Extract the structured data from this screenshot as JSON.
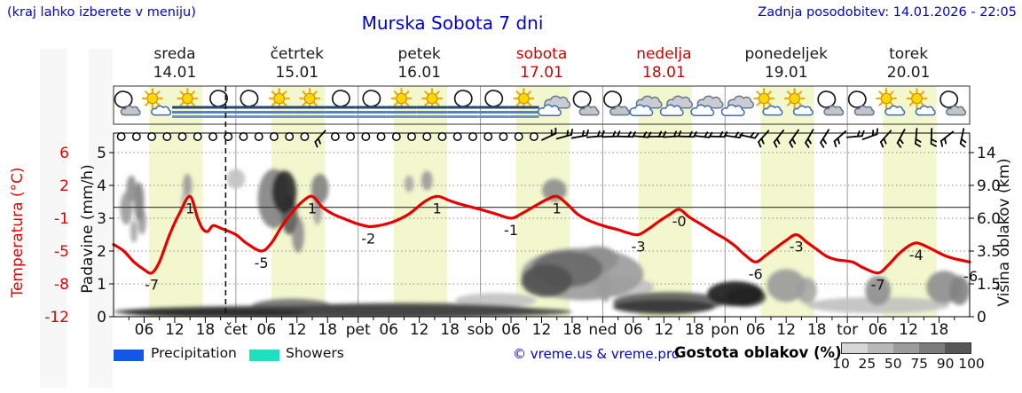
{
  "header": {
    "hint": "(kraj lahko izberete v meniju)",
    "title": "Murska Sobota 7 dni",
    "updated": "Zadnja posodobitev: 14.01.2026 - 22:05"
  },
  "days": [
    {
      "name": "sreda",
      "date": "14.01",
      "weekend": false
    },
    {
      "name": "četrtek",
      "date": "15.01",
      "weekend": false
    },
    {
      "name": "petek",
      "date": "16.01",
      "weekend": false
    },
    {
      "name": "sobota",
      "date": "17.01",
      "weekend": true
    },
    {
      "name": "nedelja",
      "date": "18.01",
      "weekend": true
    },
    {
      "name": "ponedeljek",
      "date": "19.01",
      "weekend": false
    },
    {
      "name": "torek",
      "date": "20.01",
      "weekend": false
    }
  ],
  "axes": {
    "temp_label": "Temperatura (°C)",
    "temp_ticks": [
      "6",
      "2",
      "-1",
      "-5",
      "-8",
      "-12"
    ],
    "precip_label": "Padavine (mm/h)",
    "precip_ticks": [
      "5",
      "4",
      "3",
      "2",
      "1",
      "0"
    ],
    "cloud_label": "Višina oblakov (km)",
    "cloud_ticks": [
      "14",
      "9.0",
      "6.0",
      "3.5",
      "1.5",
      "0"
    ]
  },
  "legend": {
    "precipitation": "Precipitation",
    "showers": "Showers",
    "copyright": "© vreme.us & vreme.pro",
    "cloud_density": "Gostota oblakov (%)",
    "density_ticks": [
      "10",
      "25",
      "50",
      "75",
      "90",
      "100"
    ],
    "precipitation_color": "#1158e8",
    "showers_color": "#1fdfc0",
    "density_colors": [
      "#d6d6d6",
      "#b8b8b8",
      "#9c9c9c",
      "#7d7d7d",
      "#575757"
    ]
  },
  "chart_data": {
    "type": "line",
    "title": "Murska Sobota 7 dni",
    "x_unit": "hours from 14.01 00:00",
    "x_range": [
      0,
      168
    ],
    "temp_axis_c": [
      -12,
      -8,
      -5,
      -1,
      2,
      6
    ],
    "precip_axis": [
      0,
      1,
      2,
      3,
      4,
      5
    ],
    "cloud_height_km": [
      "0",
      "1.5",
      "3.5",
      "6.0",
      "9.0",
      "14"
    ],
    "freezing_line_c": 0,
    "now_h": 22,
    "daylight_color": "#f3f7cd",
    "curve_color": "#e60000",
    "daylight": [
      [
        7,
        17.5
      ],
      [
        31,
        41.5
      ],
      [
        55,
        65.5
      ],
      [
        79,
        89.5
      ],
      [
        103,
        113.5
      ],
      [
        127,
        137.5
      ],
      [
        151,
        161.5
      ]
    ],
    "x_tick_labels": [
      {
        "h": 6,
        "t": "06"
      },
      {
        "h": 12,
        "t": "12"
      },
      {
        "h": 18,
        "t": "18"
      },
      {
        "h": 24,
        "t": "čet"
      },
      {
        "h": 30,
        "t": "06"
      },
      {
        "h": 36,
        "t": "12"
      },
      {
        "h": 42,
        "t": "18"
      },
      {
        "h": 48,
        "t": "pet"
      },
      {
        "h": 54,
        "t": "06"
      },
      {
        "h": 60,
        "t": "12"
      },
      {
        "h": 66,
        "t": "18"
      },
      {
        "h": 72,
        "t": "sob"
      },
      {
        "h": 78,
        "t": "06"
      },
      {
        "h": 84,
        "t": "12"
      },
      {
        "h": 90,
        "t": "18"
      },
      {
        "h": 96,
        "t": "ned"
      },
      {
        "h": 102,
        "t": "06"
      },
      {
        "h": 108,
        "t": "12"
      },
      {
        "h": 114,
        "t": "18"
      },
      {
        "h": 120,
        "t": "pon"
      },
      {
        "h": 126,
        "t": "06"
      },
      {
        "h": 132,
        "t": "12"
      },
      {
        "h": 138,
        "t": "18"
      },
      {
        "h": 144,
        "t": "tor"
      },
      {
        "h": 150,
        "t": "06"
      },
      {
        "h": 156,
        "t": "12"
      },
      {
        "h": 162,
        "t": "18"
      }
    ],
    "temperature_series": [
      [
        0,
        -4.2
      ],
      [
        2,
        -5
      ],
      [
        4,
        -6
      ],
      [
        6,
        -6.7
      ],
      [
        7.5,
        -7
      ],
      [
        9,
        -6
      ],
      [
        11,
        -3
      ],
      [
        13,
        -0.5
      ],
      [
        15,
        1
      ],
      [
        16.5,
        -1
      ],
      [
        17.5,
        -2.3
      ],
      [
        18.5,
        -2.6
      ],
      [
        19.5,
        -1.9
      ],
      [
        21,
        -2.2
      ],
      [
        24,
        -3
      ],
      [
        26,
        -4
      ],
      [
        29,
        -5
      ],
      [
        31,
        -4
      ],
      [
        33,
        -2
      ],
      [
        35,
        -0.5
      ],
      [
        37,
        0.5
      ],
      [
        39,
        1
      ],
      [
        41,
        0
      ],
      [
        43,
        -0.6
      ],
      [
        45,
        -1
      ],
      [
        47.5,
        -1.6
      ],
      [
        50,
        -2
      ],
      [
        52,
        -1.9
      ],
      [
        55,
        -1.4
      ],
      [
        58,
        -0.6
      ],
      [
        61,
        0.5
      ],
      [
        63.5,
        1
      ],
      [
        66,
        0.6
      ],
      [
        68,
        0.3
      ],
      [
        72,
        -0.2
      ],
      [
        75,
        -0.6
      ],
      [
        78,
        -1
      ],
      [
        80,
        -0.6
      ],
      [
        83,
        0.2
      ],
      [
        85,
        0.7
      ],
      [
        87,
        1
      ],
      [
        89,
        0.3
      ],
      [
        91,
        -0.6
      ],
      [
        93,
        -1.2
      ],
      [
        96,
        -1.9
      ],
      [
        99,
        -2.4
      ],
      [
        101,
        -2.8
      ],
      [
        103,
        -3
      ],
      [
        105,
        -2.3
      ],
      [
        107,
        -1.4
      ],
      [
        109,
        -0.7
      ],
      [
        111,
        -0.2
      ],
      [
        113,
        -0.9
      ],
      [
        116,
        -2
      ],
      [
        118,
        -2.8
      ],
      [
        120,
        -3.5
      ],
      [
        122,
        -4.4
      ],
      [
        124,
        -5.4
      ],
      [
        126,
        -6
      ],
      [
        128,
        -5.4
      ],
      [
        130,
        -4.6
      ],
      [
        132,
        -3.7
      ],
      [
        134,
        -3
      ],
      [
        136,
        -3.9
      ],
      [
        138,
        -4.8
      ],
      [
        140,
        -5.5
      ],
      [
        142,
        -5.8
      ],
      [
        145,
        -6
      ],
      [
        147,
        -6.5
      ],
      [
        150,
        -7
      ],
      [
        152,
        -6.3
      ],
      [
        154,
        -5.3
      ],
      [
        156,
        -4.4
      ],
      [
        157.5,
        -4
      ],
      [
        159,
        -4.3
      ],
      [
        161,
        -4.9
      ],
      [
        163,
        -5.4
      ],
      [
        165,
        -5.7
      ],
      [
        168,
        -6
      ]
    ],
    "temp_labels": [
      {
        "h": 7.5,
        "c": -7,
        "t": "-7"
      },
      {
        "h": 15,
        "c": 1,
        "t": "1"
      },
      {
        "h": 29,
        "c": -5,
        "t": "-5"
      },
      {
        "h": 39,
        "c": 1,
        "t": "1"
      },
      {
        "h": 50,
        "c": -2,
        "t": "-2"
      },
      {
        "h": 63.5,
        "c": 1,
        "t": "1"
      },
      {
        "h": 78,
        "c": -1,
        "t": "-1"
      },
      {
        "h": 87,
        "c": 1,
        "t": "1"
      },
      {
        "h": 103,
        "c": -3,
        "t": "-3"
      },
      {
        "h": 111,
        "c": -0.2,
        "t": "-0"
      },
      {
        "h": 126,
        "c": -6,
        "t": "-6"
      },
      {
        "h": 134,
        "c": -3,
        "t": "-3"
      },
      {
        "h": 150,
        "c": -7,
        "t": "-7"
      },
      {
        "h": 157.5,
        "c": -4,
        "t": "-4"
      },
      {
        "h": 168.2,
        "c": -6.2,
        "t": "-6"
      }
    ],
    "weather_icons_6h": [
      "moon-cloud",
      "sun-cloud",
      "sun-fog",
      "moon-fog",
      "moon-fog",
      "sun-fog",
      "sun-fog",
      "moon-fog",
      "moon-fog",
      "sun-fog",
      "sun-fog",
      "moon-fog",
      "moon-fog",
      "sun-fog",
      "cloud",
      "moon-cloud",
      "moon-cloud",
      "cloud",
      "cloud",
      "cloud",
      "cloud",
      "sun-cloud",
      "sun-cloud",
      "moon-cloud",
      "moon-cloud",
      "sun-cloud",
      "sun-cloud",
      "moon-cloud"
    ],
    "wind_3h": [
      "c",
      "c",
      "c",
      "c",
      "c",
      "c",
      "c",
      "c",
      "c",
      "c",
      "c",
      "c",
      "c",
      48,
      "c",
      "c",
      "c",
      "c",
      "c",
      "c",
      "c",
      "c",
      "c",
      "c",
      "c",
      "c",
      "c",
      "c",
      205,
      195,
      190,
      185,
      182,
      178,
      175,
      180,
      183,
      178,
      174,
      178,
      172,
      168,
      48,
      52,
      55,
      60,
      58,
      42,
      185,
      200,
      48,
      62,
      85,
      88,
      38,
      78
    ],
    "cloud_blobs_h_u_rh_ru_density": [
      [
        2.5,
        3.3,
        1.2,
        0.5,
        0.45
      ],
      [
        3.5,
        3.9,
        1.0,
        0.4,
        0.5
      ],
      [
        5,
        3.5,
        1.0,
        0.6,
        0.55
      ],
      [
        5.6,
        2.9,
        0.8,
        0.4,
        0.45
      ],
      [
        4,
        2.6,
        0.7,
        0.35,
        0.4
      ],
      [
        14.5,
        4.0,
        0.9,
        0.35,
        0.45
      ],
      [
        13.8,
        3.5,
        0.5,
        0.3,
        0.35
      ],
      [
        24,
        4.2,
        1.8,
        0.3,
        0.3
      ],
      [
        31.5,
        3.6,
        3.2,
        0.9,
        0.55
      ],
      [
        33.5,
        3.8,
        2.4,
        0.65,
        0.9
      ],
      [
        34.5,
        3.1,
        1.6,
        0.6,
        0.7
      ],
      [
        36.2,
        2.5,
        1.2,
        0.55,
        0.5
      ],
      [
        40.5,
        3.9,
        1.7,
        0.45,
        0.55
      ],
      [
        40,
        3.3,
        0.9,
        0.5,
        0.4
      ],
      [
        58,
        4.05,
        0.9,
        0.25,
        0.4
      ],
      [
        61.5,
        4.15,
        1.1,
        0.3,
        0.45
      ],
      [
        86.5,
        3.85,
        2.4,
        0.35,
        0.5
      ],
      [
        92,
        1.3,
        12,
        0.8,
        0.45
      ],
      [
        89,
        1.45,
        7,
        0.55,
        0.65
      ],
      [
        85,
        1.1,
        5,
        0.5,
        0.75
      ],
      [
        95,
        1.75,
        4,
        0.4,
        0.5
      ],
      [
        45,
        0.15,
        45,
        0.2,
        0.8
      ],
      [
        20,
        0.12,
        18,
        0.14,
        0.9
      ],
      [
        57,
        0.2,
        26,
        0.22,
        0.75
      ],
      [
        35,
        0.3,
        8,
        0.25,
        0.6
      ],
      [
        96.5,
        0.95,
        1.2,
        0.5,
        0.45
      ],
      [
        109,
        0.45,
        11,
        0.3,
        0.7
      ],
      [
        108,
        0.3,
        10,
        0.22,
        0.85
      ],
      [
        122,
        0.7,
        5.5,
        0.38,
        0.95
      ],
      [
        124,
        0.6,
        4,
        0.3,
        0.8
      ],
      [
        132,
        0.95,
        3.8,
        0.5,
        0.45
      ],
      [
        136,
        0.8,
        2,
        0.4,
        0.4
      ],
      [
        150,
        0.8,
        2.5,
        0.45,
        0.5
      ],
      [
        163,
        0.9,
        3.5,
        0.5,
        0.5
      ],
      [
        166,
        0.8,
        2,
        0.45,
        0.55
      ],
      [
        150,
        0.35,
        14,
        0.25,
        0.3
      ],
      [
        100,
        0.9,
        6,
        0.3,
        0.3
      ],
      [
        75,
        0.5,
        8,
        0.22,
        0.3
      ]
    ]
  }
}
